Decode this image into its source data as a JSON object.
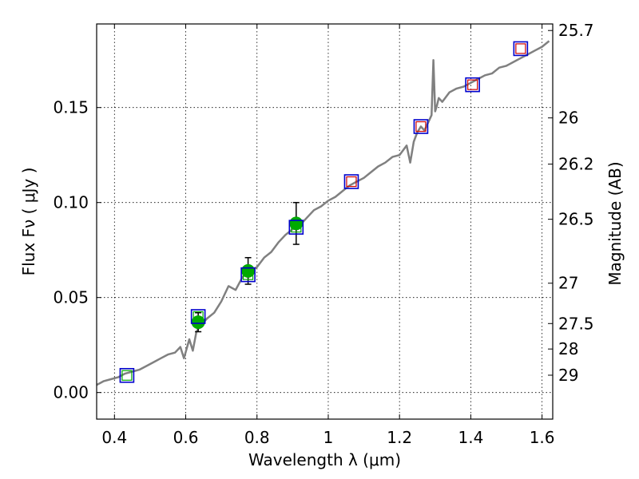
{
  "chart_data": {
    "type": "scatter",
    "xlabel": "Wavelength  λ (μm)",
    "ylabel": "Flux  Fν  ( μJy )",
    "y2label": "Magnitude (AB)",
    "xlim": [
      0.35,
      1.63
    ],
    "ylim": [
      -0.014,
      0.194
    ],
    "grid": true,
    "x_ticks": [
      {
        "v": 0.4,
        "label": "0.4"
      },
      {
        "v": 0.6,
        "label": "0.6"
      },
      {
        "v": 0.8,
        "label": "0.8"
      },
      {
        "v": 1.0,
        "label": "1"
      },
      {
        "v": 1.2,
        "label": "1.2"
      },
      {
        "v": 1.4,
        "label": "1.4"
      },
      {
        "v": 1.6,
        "label": "1.6"
      }
    ],
    "y_ticks": [
      {
        "v": 0.0,
        "label": "0.00"
      },
      {
        "v": 0.05,
        "label": "0.05"
      },
      {
        "v": 0.1,
        "label": "0.10"
      },
      {
        "v": 0.15,
        "label": "0.15"
      }
    ],
    "mag_ticks": [
      {
        "v": 25.7,
        "label": "25.7"
      },
      {
        "v": 26,
        "label": "26"
      },
      {
        "v": 26.2,
        "label": "26.2"
      },
      {
        "v": 26.5,
        "label": "26.5"
      },
      {
        "v": 27,
        "label": "27"
      },
      {
        "v": 27.5,
        "label": "27.5"
      },
      {
        "v": 28,
        "label": "28"
      },
      {
        "v": 29,
        "label": "29"
      }
    ],
    "series": [
      {
        "kind": "line",
        "color": "#808080",
        "x": [
          0.35,
          0.37,
          0.39,
          0.41,
          0.43,
          0.45,
          0.47,
          0.49,
          0.51,
          0.53,
          0.55,
          0.57,
          0.585,
          0.595,
          0.61,
          0.62,
          0.63,
          0.64,
          0.66,
          0.68,
          0.7,
          0.71,
          0.72,
          0.74,
          0.76,
          0.78,
          0.8,
          0.82,
          0.84,
          0.86,
          0.88,
          0.9,
          0.92,
          0.94,
          0.96,
          0.98,
          1.0,
          1.02,
          1.04,
          1.06,
          1.08,
          1.1,
          1.12,
          1.14,
          1.16,
          1.18,
          1.2,
          1.22,
          1.23,
          1.24,
          1.25,
          1.26,
          1.27,
          1.28,
          1.29,
          1.295,
          1.3,
          1.305,
          1.31,
          1.32,
          1.34,
          1.36,
          1.38,
          1.4,
          1.42,
          1.44,
          1.46,
          1.48,
          1.5,
          1.52,
          1.54,
          1.56,
          1.58,
          1.6,
          1.62
        ],
        "y": [
          0.004,
          0.006,
          0.007,
          0.008,
          0.01,
          0.011,
          0.012,
          0.014,
          0.016,
          0.018,
          0.02,
          0.021,
          0.024,
          0.018,
          0.028,
          0.022,
          0.032,
          0.035,
          0.039,
          0.042,
          0.048,
          0.052,
          0.056,
          0.054,
          0.061,
          0.064,
          0.066,
          0.071,
          0.074,
          0.079,
          0.083,
          0.086,
          0.088,
          0.092,
          0.096,
          0.098,
          0.101,
          0.103,
          0.106,
          0.109,
          0.111,
          0.113,
          0.116,
          0.119,
          0.121,
          0.124,
          0.125,
          0.13,
          0.121,
          0.132,
          0.137,
          0.14,
          0.138,
          0.142,
          0.146,
          0.175,
          0.148,
          0.151,
          0.155,
          0.153,
          0.158,
          0.16,
          0.161,
          0.163,
          0.165,
          0.167,
          0.168,
          0.171,
          0.172,
          0.174,
          0.176,
          0.178,
          0.18,
          0.182,
          0.185
        ]
      },
      {
        "kind": "points",
        "marker": "filled-circle",
        "color": "#00aa00",
        "x": [
          0.635,
          0.775,
          0.91
        ],
        "y": [
          0.037,
          0.064,
          0.089
        ],
        "err": [
          0.005,
          0.007,
          0.011
        ]
      },
      {
        "kind": "points",
        "marker": "open-square",
        "color": "#0000cc",
        "x": [
          0.435,
          0.635,
          0.775,
          0.91,
          1.065,
          1.26,
          1.405,
          1.54
        ],
        "y": [
          0.009,
          0.04,
          0.062,
          0.087,
          0.111,
          0.14,
          0.162,
          0.181
        ]
      },
      {
        "kind": "points",
        "marker": "open-square-small",
        "colors": [
          "#00aa00",
          "#00aa00",
          "#00aa00",
          "#00aa00",
          "#cc0000",
          "#cc0000",
          "#cc0000",
          "#cc0000"
        ],
        "x": [
          0.435,
          0.635,
          0.775,
          0.91,
          1.065,
          1.26,
          1.405,
          1.54
        ],
        "y": [
          0.009,
          0.04,
          0.062,
          0.087,
          0.111,
          0.14,
          0.162,
          0.181
        ]
      }
    ]
  }
}
